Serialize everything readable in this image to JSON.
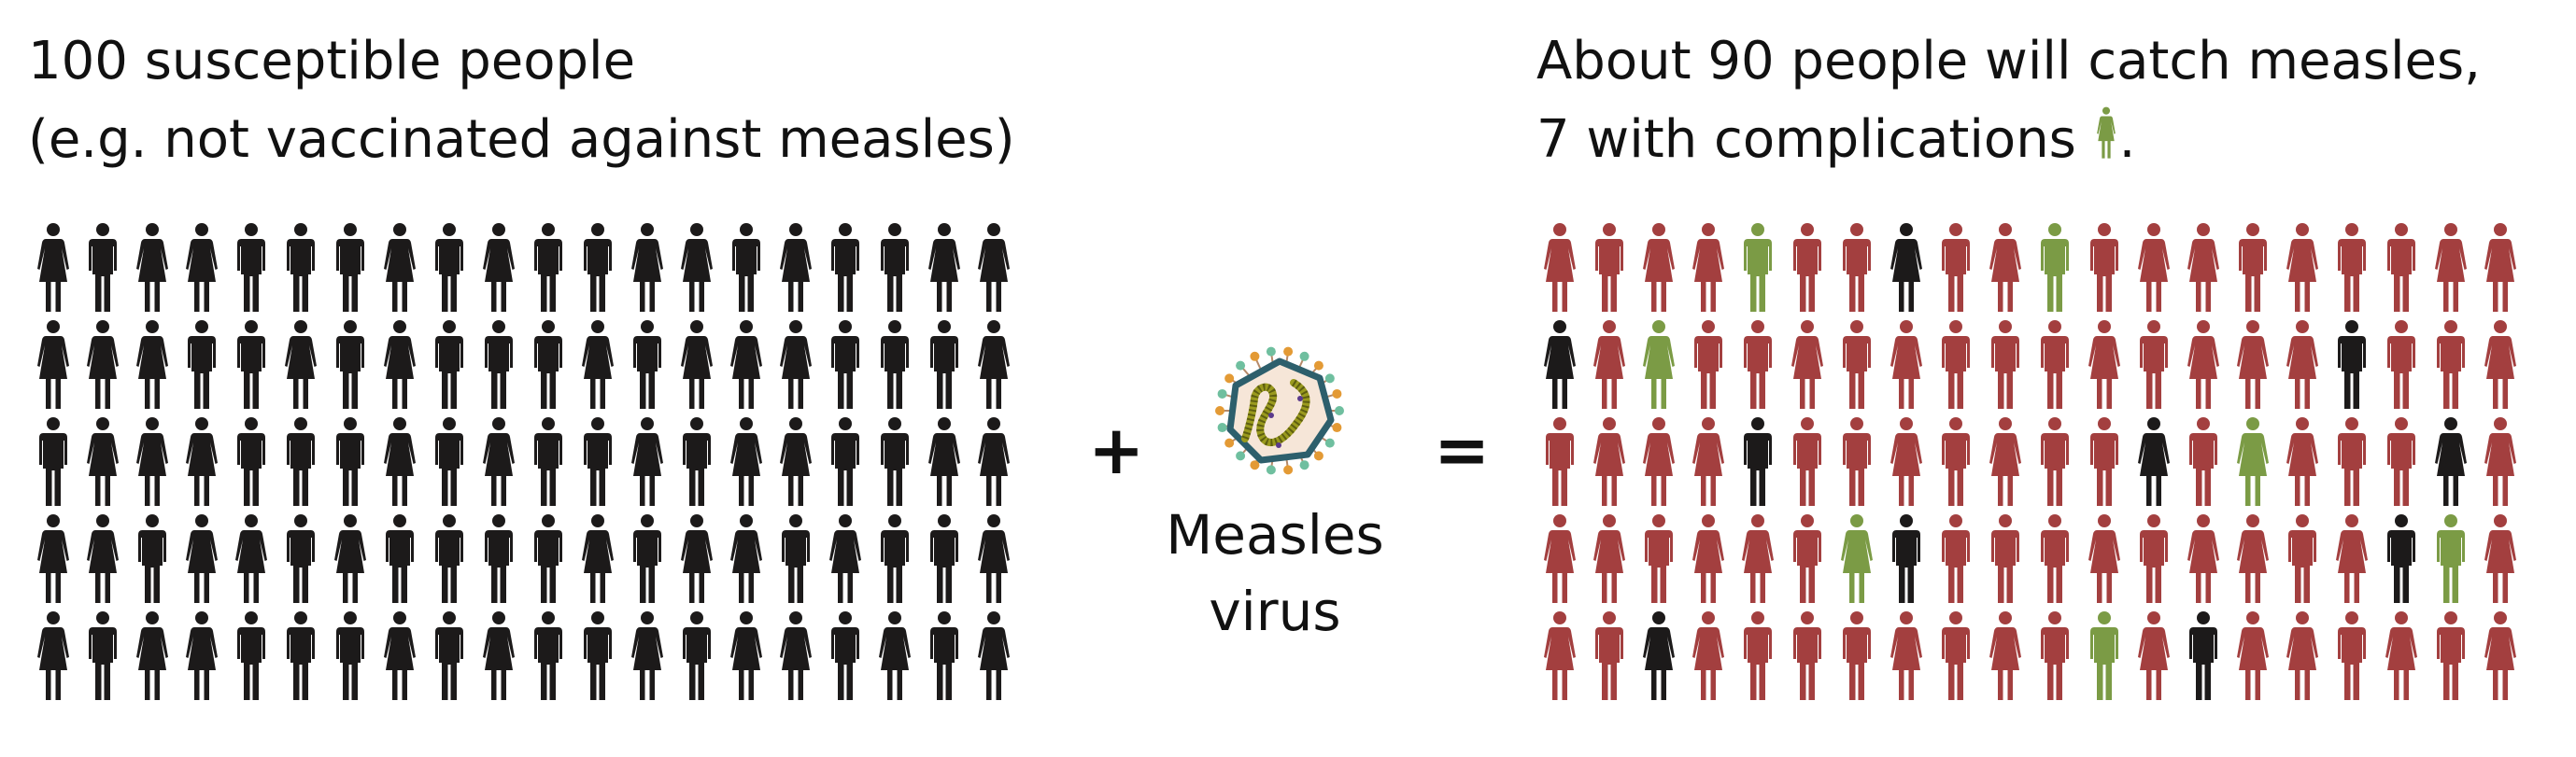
{
  "left": {
    "title_line1": "100 susceptible people",
    "title_line2": "(e.g. not vaccinated against measles)"
  },
  "middle": {
    "plus": "+",
    "virus_label_line1": "Measles",
    "virus_label_line2": "virus",
    "equals": "=",
    "virus_icon": "measles-virus-icon"
  },
  "right": {
    "title_line1": "About 90 people will catch measles,",
    "title_line2": "7 with complications",
    "title_end": ".",
    "legend_icon": "green-female-figure-icon"
  },
  "colors": {
    "susceptible": "#1c1a1a",
    "infected": "#a33f3f",
    "complications": "#7b9b45",
    "not_infected": "#1c1a1a"
  },
  "grid_genders": [
    "FMFFMMMFMFMMFFMFMMFF",
    "FFFMMFMFMMMFMFFFMMMF",
    "MFFFMMMFMFMMFMFFMMFF",
    "FFMFFMFMMMMFMFFMFMMF",
    "FMFFMMMFMFMMFMFFMFMF"
  ],
  "right_grid_status": [
    "rrrrgrrkrrgrrrrrrrrr",
    "krgrrrrrrrrrrrrrkrrr",
    "rrrrkrrrrrrrkrgrrrkr",
    "rrrrrrgkrrrrrrrrrkgr",
    "rrkrrrrrrrrgrkrrrrrr"
  ],
  "status_key": {
    "r": "infected",
    "g": "complications",
    "k": "not_infected"
  }
}
